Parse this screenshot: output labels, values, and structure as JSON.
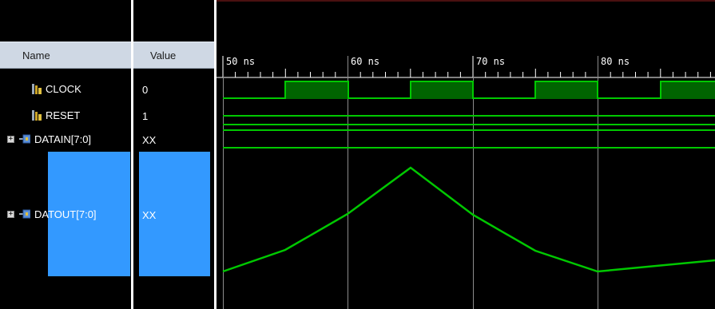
{
  "columns": {
    "name": "Name",
    "value": "Value"
  },
  "signals": [
    {
      "name": "CLOCK",
      "value": "0",
      "kind": "port-icon",
      "expandable": false
    },
    {
      "name": "RESET",
      "value": "1",
      "kind": "port-icon",
      "expandable": false
    },
    {
      "name": "DATAIN[7:0]",
      "value": "XX",
      "kind": "bus-icon",
      "expandable": true
    },
    {
      "name": "DATOUT[7:0]",
      "value": "XX",
      "kind": "bus-icon",
      "expandable": true,
      "selected": true
    }
  ],
  "timeline": {
    "unit": "ns",
    "labels": [
      "50 ns",
      "60 ns",
      "70 ns",
      "80 ns"
    ]
  },
  "colors": {
    "trace": "#00c800",
    "clock_fill": "#006400",
    "cursor": "#ffffff",
    "selection": "#3399ff",
    "header_bg": "#cfd8e4"
  }
}
